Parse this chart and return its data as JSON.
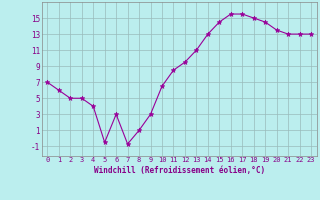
{
  "x": [
    0,
    1,
    2,
    3,
    4,
    5,
    6,
    7,
    8,
    9,
    10,
    11,
    12,
    13,
    14,
    15,
    16,
    17,
    18,
    19,
    20,
    21,
    22,
    23
  ],
  "y": [
    7,
    6,
    5,
    5,
    4,
    -0.5,
    3,
    -0.7,
    1,
    3,
    6.5,
    8.5,
    9.5,
    11,
    13,
    14.5,
    15.5,
    15.5,
    15,
    14.5,
    13.5,
    13,
    13,
    13
  ],
  "line_color": "#990099",
  "marker": "*",
  "marker_color": "#990099",
  "bg_color": "#bbeeee",
  "grid_color": "#99bbbb",
  "ylabel_ticks": [
    -1,
    1,
    3,
    5,
    7,
    9,
    11,
    13,
    15
  ],
  "xlabel": "Windchill (Refroidissement éolien,°C)",
  "xlim": [
    -0.5,
    23.5
  ],
  "ylim": [
    -2.2,
    17
  ],
  "title": ""
}
